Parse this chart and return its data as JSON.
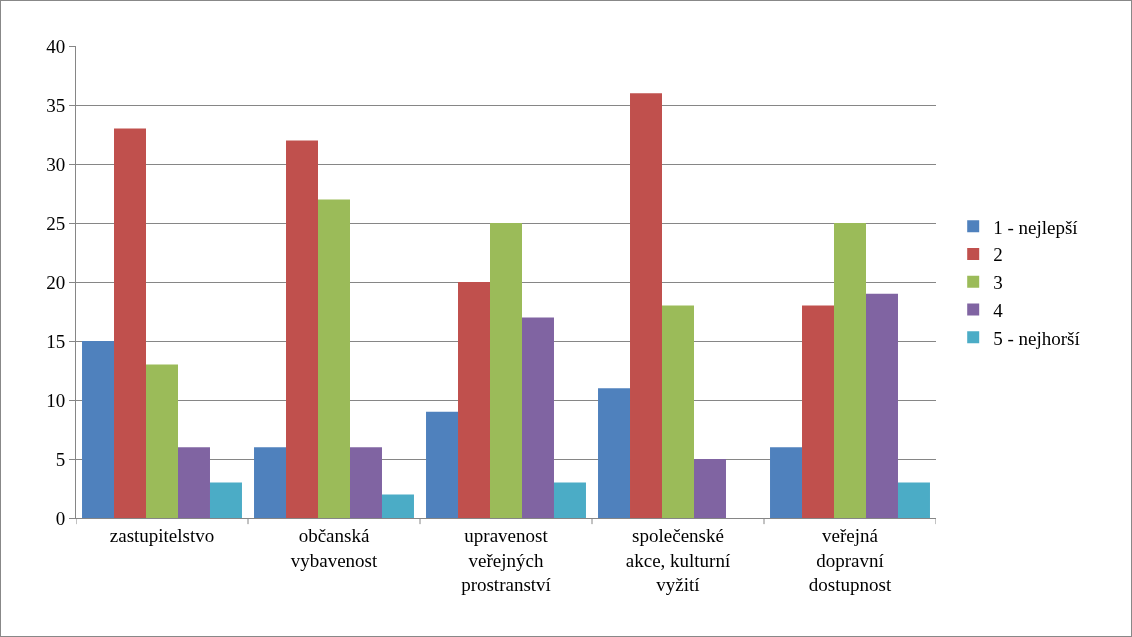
{
  "chart_data": {
    "type": "bar",
    "categories": [
      "zastupitelstvo",
      "občanská\nvybavenost",
      "upravenost\nveřejných\nprostranství",
      "společenské\nakce, kulturní\nvyžití",
      "veřejná\ndopravní\ndostupnost"
    ],
    "series": [
      {
        "name": "1 - nejlepší",
        "color": "#4f81bd",
        "values": [
          15,
          6,
          9,
          11,
          6
        ]
      },
      {
        "name": "2",
        "color": "#c0504d",
        "values": [
          33,
          32,
          20,
          36,
          18
        ]
      },
      {
        "name": "3",
        "color": "#9bbb59",
        "values": [
          13,
          27,
          25,
          18,
          25
        ]
      },
      {
        "name": "4",
        "color": "#8064a2",
        "values": [
          6,
          6,
          17,
          5,
          19
        ]
      },
      {
        "name": "5 - nejhorší",
        "color": "#4bacc6",
        "values": [
          3,
          2,
          3,
          0,
          3
        ]
      }
    ],
    "ylim": [
      0,
      40
    ],
    "yticks": [
      0,
      5,
      10,
      15,
      20,
      25,
      30,
      35,
      40
    ],
    "grid": "y",
    "legend": "right"
  }
}
